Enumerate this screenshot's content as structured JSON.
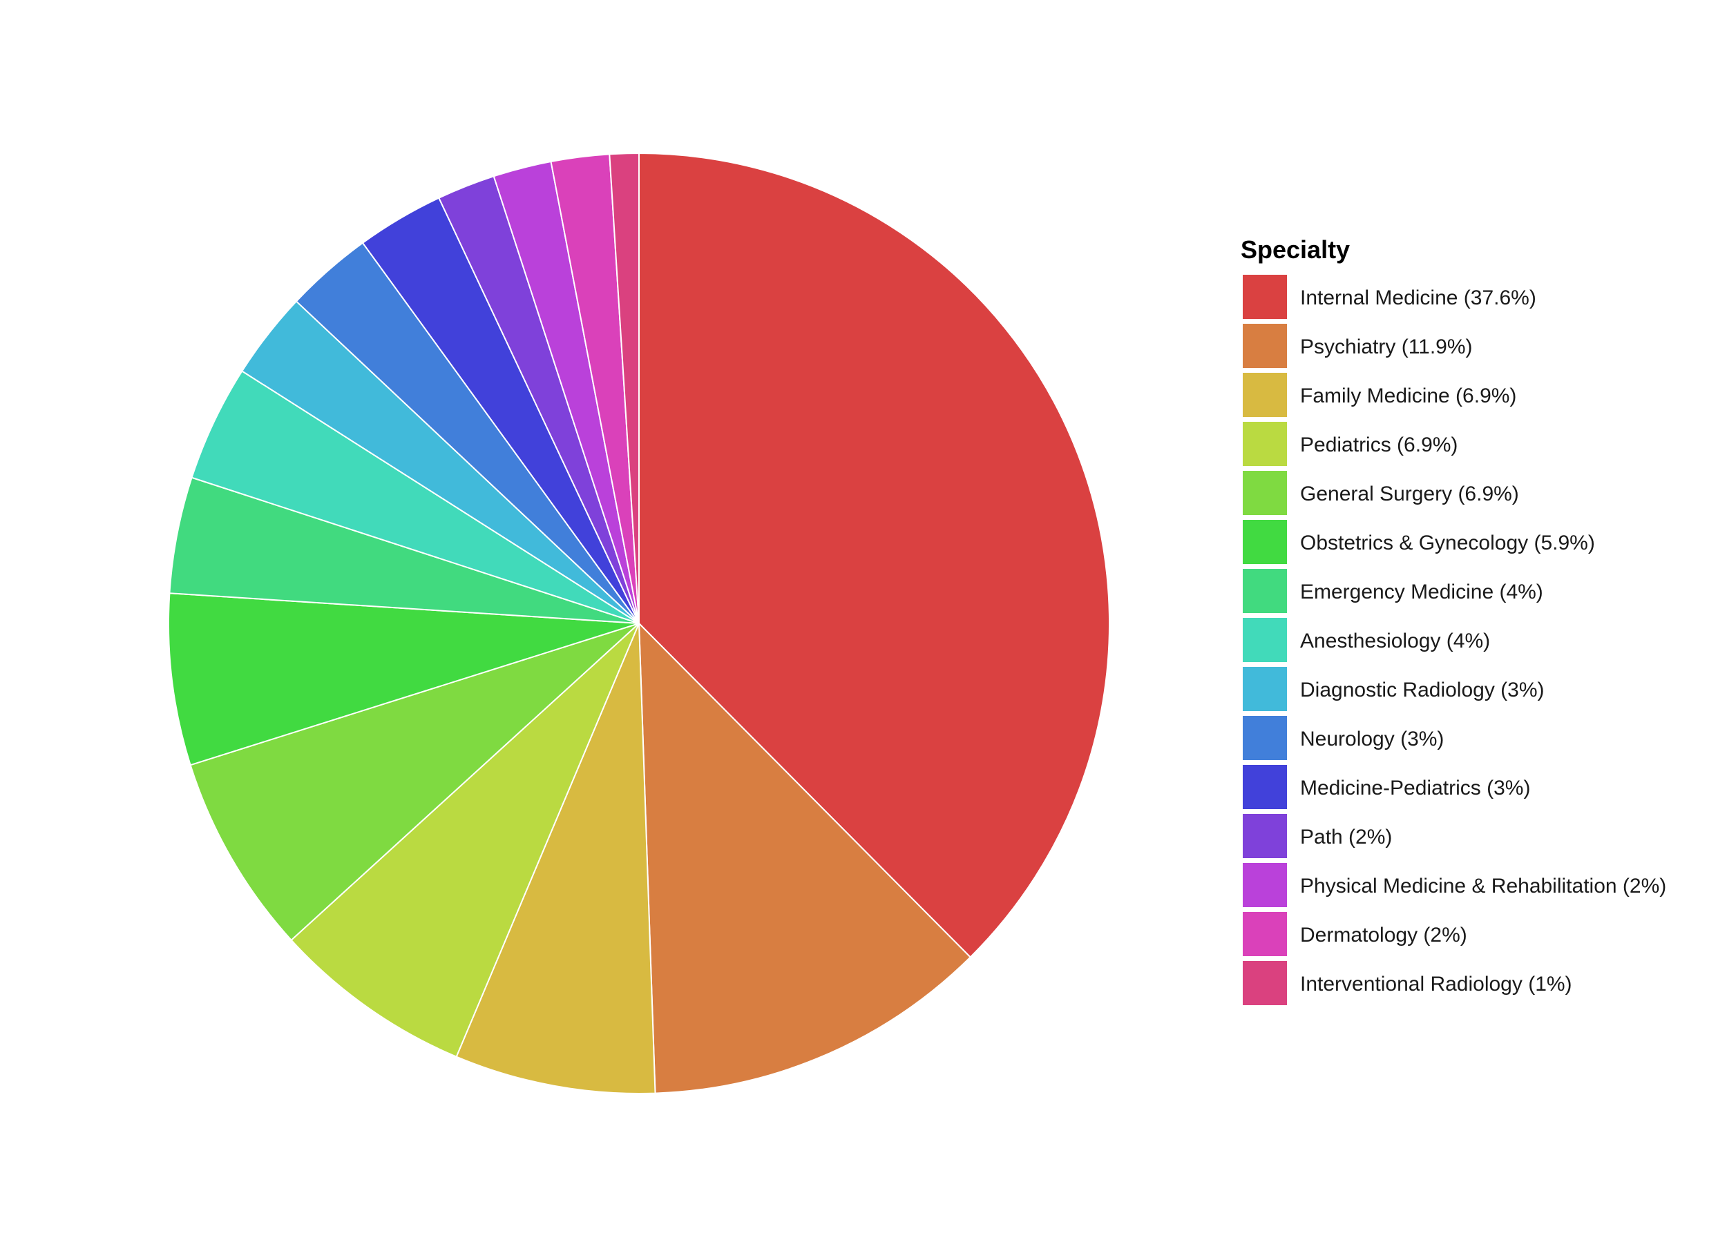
{
  "chart_data": {
    "type": "pie",
    "legend_title": "Specialty",
    "legend_position": "right",
    "start_angle": "12 o'clock, clockwise",
    "slices": [
      {
        "label": "Internal Medicine (37.6%)",
        "value": 37.6,
        "color": "#DA4141"
      },
      {
        "label": "Psychiatry (11.9%)",
        "value": 11.9,
        "color": "#D87E41"
      },
      {
        "label": "Family Medicine (6.9%)",
        "value": 6.9,
        "color": "#D8BA41"
      },
      {
        "label": "Pediatrics (6.9%)",
        "value": 6.9,
        "color": "#BADA41"
      },
      {
        "label": "General Surgery (6.9%)",
        "value": 6.9,
        "color": "#7FDA41"
      },
      {
        "label": "Obstetrics & Gynecology (5.9%)",
        "value": 5.9,
        "color": "#41DA41"
      },
      {
        "label": "Emergency Medicine (4%)",
        "value": 4,
        "color": "#41DA7F"
      },
      {
        "label": "Anesthesiology (4%)",
        "value": 4,
        "color": "#41DABA"
      },
      {
        "label": "Diagnostic Radiology (3%)",
        "value": 3,
        "color": "#41BADA"
      },
      {
        "label": "Neurology (3%)",
        "value": 3,
        "color": "#417FDA"
      },
      {
        "label": "Medicine-Pediatrics (3%)",
        "value": 3,
        "color": "#4141DA"
      },
      {
        "label": "Path (2%)",
        "value": 2,
        "color": "#7F41DA"
      },
      {
        "label": "Physical Medicine & Rehabilitation (2%)",
        "value": 2,
        "color": "#BA41DA"
      },
      {
        "label": "Dermatology (2%)",
        "value": 2,
        "color": "#DA41BA"
      },
      {
        "label": "Interventional Radiology (1%)",
        "value": 1,
        "color": "#DA417F"
      }
    ]
  }
}
